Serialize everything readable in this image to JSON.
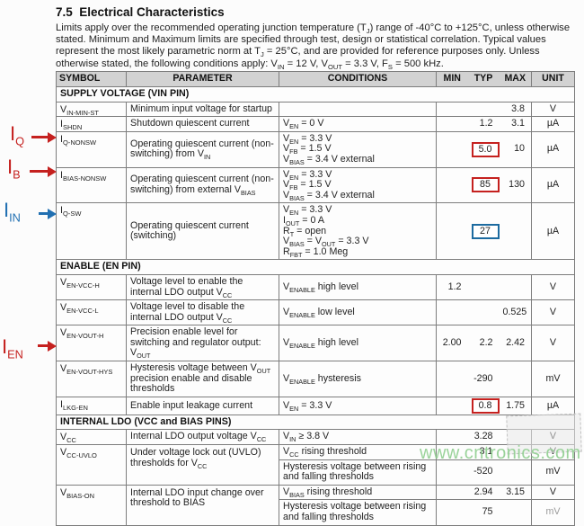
{
  "page": {
    "title": "7.5  Electrical Characteristics",
    "intro": "Limits apply over the recommended operating junction temperature (T~J~) range of -40°C to +125°C, unless otherwise stated. Minimum and Maximum limits are specified through test, design or statistical correlation. Typical values represent the most likely parametric norm at T~J~ = 25°C, and are provided for reference purposes only. Unless otherwise stated, the following conditions apply: V~IN~ = 12 V, V~OUT~ = 3.3 V, F~S~ = 500 kHz."
  },
  "colors": {
    "header_bg": "#d2d2d2",
    "table_border": "#7d7d7d",
    "red_box": "#c5211f",
    "blue_box": "#1c6ba0",
    "annotation_red": "#c5211f",
    "annotation_blue": "#2170b2",
    "watermark_green": "#90cf90"
  },
  "annotations": [
    {
      "label": "I~Q~",
      "color": "red"
    },
    {
      "label": "I~B~",
      "color": "red"
    },
    {
      "label": "I~IN~",
      "color": "blue"
    },
    {
      "label": "I~EN~",
      "color": "red"
    }
  ],
  "watermark": "www.cntronics.com",
  "table": {
    "headers": {
      "symbol": "SYMBOL",
      "parameter": "PARAMETER",
      "conditions": "CONDITIONS",
      "min": "MIN",
      "typ": "TYP",
      "max": "MAX",
      "unit": "UNIT"
    },
    "sections": [
      {
        "title": "SUPPLY VOLTAGE (VIN PIN)",
        "rows": [
          {
            "symbol": "V~IN-MIN-ST~",
            "parameter": "Minimum input voltage for startup",
            "conditions": "",
            "min": "",
            "typ": "",
            "max": "3.8",
            "unit": "V"
          },
          {
            "symbol": "I~SHDN~",
            "parameter": "Shutdown quiescent current",
            "conditions": "V~EN~ = 0 V",
            "min": "",
            "typ": "1.2",
            "max": "3.1",
            "unit": "µA"
          },
          {
            "symbol": "I~Q-NONSW~",
            "parameter": "Operating quiescent current (non-switching) from V~IN~",
            "conditions": "V~EN~ = 3.3 V\nV~FB~ = 1.5 V\nV~BIAS~ = 3.4 V external",
            "min": "",
            "typ": "5.0",
            "typ_box": "red",
            "max": "10",
            "unit": "µA"
          },
          {
            "symbol": "I~BIAS-NONSW~",
            "parameter": "Operating quiescent current (non-switching) from external V~BIAS~",
            "conditions": "V~EN~ = 3.3 V\nV~FB~ = 1.5 V\nV~BIAS~ = 3.4 V external",
            "min": "",
            "typ": "85",
            "typ_box": "red",
            "max": "130",
            "unit": "µA"
          },
          {
            "symbol": "I~Q-SW~",
            "parameter": "Operating quiescent current (switching)",
            "conditions": "V~EN~ = 3.3 V\nI~OUT~ = 0 A\nR~T~ = open\nV~BIAS~ = V~OUT~ = 3.3 V\nR~FBT~ = 1.0 Meg",
            "min": "",
            "typ": "27",
            "typ_box": "blue",
            "max": "",
            "unit": "µA"
          }
        ]
      },
      {
        "title": "ENABLE (EN PIN)",
        "rows": [
          {
            "symbol": "V~EN-VCC-H~",
            "parameter": "Voltage level to enable the internal LDO output V~CC~",
            "conditions": "V~ENABLE~ high level",
            "min": "1.2",
            "typ": "",
            "max": "",
            "unit": "V"
          },
          {
            "symbol": "V~EN-VCC-L~",
            "parameter": "Voltage level to disable the internal LDO output V~CC~",
            "conditions": "V~ENABLE~ low level",
            "min": "",
            "typ": "",
            "max": "0.525",
            "unit": "V"
          },
          {
            "symbol": "V~EN-VOUT-H~",
            "parameter": "Precision enable level for switching and regulator output: V~OUT~",
            "conditions": "V~ENABLE~ high level",
            "min": "2.00",
            "typ": "2.2",
            "max": "2.42",
            "unit": "V"
          },
          {
            "symbol": "V~EN-VOUT-HYS~",
            "parameter": "Hysteresis voltage between V~OUT~ precision enable and disable thresholds",
            "conditions": "V~ENABLE~ hysteresis",
            "min": "",
            "typ": "-290",
            "max": "",
            "unit": "mV"
          },
          {
            "symbol": "I~LKG-EN~",
            "parameter": "Enable input leakage current",
            "conditions": "V~EN~ = 3.3 V",
            "min": "",
            "typ": "0.8",
            "typ_box": "red",
            "max": "1.75",
            "unit": "µA"
          }
        ]
      },
      {
        "title": "INTERNAL LDO (VCC and BIAS PINS)",
        "rows": [
          {
            "symbol": "V~CC~",
            "parameter": "Internal LDO output voltage V~CC~",
            "conditions": "V~IN~ ≥ 3.8 V",
            "min": "",
            "typ": "3.28",
            "max": "",
            "unit": "V"
          },
          {
            "symbol": "V~CC-UVLO~",
            "parameter": "Under voltage lock out (UVLO) thresholds for V~CC~",
            "subrows": [
              {
                "conditions": "V~CC~ rising threshold",
                "min": "",
                "typ": "3.1",
                "max": "",
                "unit": "V"
              },
              {
                "conditions": "Hysteresis voltage between rising and falling thresholds",
                "min": "",
                "typ": "-520",
                "max": "",
                "unit": "mV"
              }
            ]
          },
          {
            "symbol": "V~BIAS-ON~",
            "parameter": "Internal LDO input change over threshold to BIAS",
            "subrows": [
              {
                "conditions": "V~BIAS~ rising threshold",
                "min": "",
                "typ": "2.94",
                "max": "3.15",
                "unit": "V"
              },
              {
                "conditions": "Hysteresis voltage between rising and falling thresholds",
                "min": "",
                "typ": "75",
                "max": "",
                "unit": "mV"
              }
            ]
          }
        ]
      }
    ]
  }
}
